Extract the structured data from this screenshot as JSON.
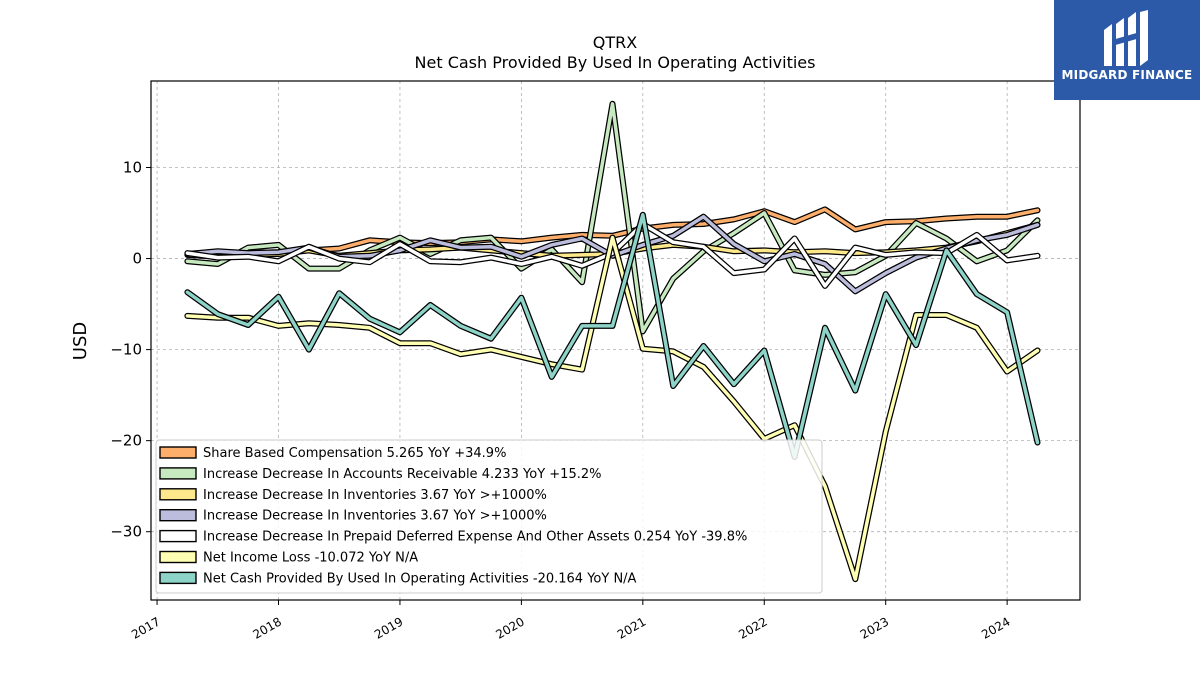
{
  "brand": {
    "name": "MIDGARD FINANCE",
    "bg_color": "#2c5aa8"
  },
  "chart_data": {
    "type": "line",
    "title": "QTRX",
    "subtitle": "Net Cash Provided By Used In Operating Activities",
    "ylabel": "USD",
    "xlabel": "",
    "xlim": [
      2016.95,
      2024.6
    ],
    "ylim": [
      -37.5,
      19.5
    ],
    "yticks": [
      10,
      0,
      -10,
      -20,
      -30
    ],
    "xticks": [
      "2017",
      "2018",
      "2019",
      "2020",
      "2021",
      "2022",
      "2023",
      "2024"
    ],
    "grid": true,
    "legend_placement": "lower-left",
    "x": [
      2017.25,
      2017.5,
      2017.75,
      2018.0,
      2018.25,
      2018.5,
      2018.75,
      2019.0,
      2019.25,
      2019.5,
      2019.75,
      2020.0,
      2020.25,
      2020.5,
      2020.75,
      2021.0,
      2021.25,
      2021.5,
      2021.75,
      2022.0,
      2022.25,
      2022.5,
      2022.75,
      2023.0,
      2023.25,
      2023.5,
      2023.75,
      2024.0,
      2024.25
    ],
    "series": [
      {
        "name": "Share Based Compensation  5.265 YoY +34.9%",
        "color": "#fdae6b",
        "values": [
          0.5,
          0.5,
          0.6,
          0.7,
          0.9,
          1.1,
          2.0,
          1.8,
          1.7,
          1.8,
          2.1,
          1.9,
          2.3,
          2.6,
          2.5,
          3.3,
          3.7,
          3.8,
          4.3,
          5.2,
          4.0,
          5.4,
          3.2,
          4.0,
          4.1,
          4.4,
          4.6,
          4.6,
          5.3
        ]
      },
      {
        "name": "Increase Decrease In Accounts Receivable  4.233 YoY +15.2%",
        "color": "#c7e9c0",
        "values": [
          -0.3,
          -0.6,
          1.2,
          1.5,
          -1.1,
          -1.1,
          0.9,
          2.3,
          0.5,
          2.0,
          2.3,
          -1.1,
          1.0,
          -2.6,
          17.0,
          -8.0,
          -2.2,
          0.8,
          2.8,
          5.0,
          -1.3,
          -1.8,
          -1.5,
          0.3,
          3.9,
          2.2,
          -0.3,
          0.9,
          4.2
        ]
      },
      {
        "name": "Increase Decrease In Inventories  3.67 YoY >+1000%",
        "color": "#fde98b",
        "values": [
          0.4,
          0.2,
          0.4,
          0.5,
          0.9,
          0.3,
          0.6,
          0.9,
          1.0,
          1.2,
          0.9,
          0.6,
          0.3,
          0.4,
          0.5,
          1.1,
          1.5,
          1.3,
          0.8,
          0.9,
          0.7,
          0.8,
          0.6,
          0.7,
          0.9,
          1.2,
          1.9,
          2.8,
          3.7
        ]
      },
      {
        "name": "Increase Decrease In Inventories  3.67 YoY >+1000%",
        "color": "#bcbddc",
        "values": [
          0.5,
          0.8,
          0.6,
          0.7,
          1.2,
          0.2,
          0.3,
          0.9,
          2.0,
          1.2,
          1.3,
          0.2,
          1.5,
          2.2,
          0.3,
          1.5,
          2.5,
          4.6,
          1.6,
          -0.3,
          0.5,
          -0.6,
          -3.6,
          -1.6,
          0.1,
          1.1,
          2.0,
          2.6,
          3.7
        ]
      },
      {
        "name": "Increase Decrease In Prepaid Deferred Expense And Other Assets  0.254 YoY -39.8%",
        "color": "#ffffff",
        "values": [
          0.6,
          0.1,
          0.2,
          -0.3,
          1.3,
          0.0,
          -0.4,
          1.6,
          -0.3,
          -0.4,
          0.1,
          -0.6,
          0.2,
          -0.8,
          0.6,
          3.8,
          1.8,
          1.3,
          -1.6,
          -1.2,
          2.2,
          -3.0,
          1.2,
          0.4,
          0.7,
          0.6,
          2.6,
          -0.2,
          0.3
        ]
      },
      {
        "name": "Net Income Loss  -10.072 YoY N/A",
        "color": "#ffffb3",
        "values": [
          -6.3,
          -6.5,
          -6.5,
          -7.4,
          -7.1,
          -7.3,
          -7.6,
          -9.3,
          -9.3,
          -10.5,
          -10.0,
          -10.8,
          -11.6,
          -12.2,
          2.3,
          -9.9,
          -10.2,
          -11.9,
          -15.7,
          -19.8,
          -18.3,
          -25.0,
          -35.2,
          -19.0,
          -6.2,
          -6.2,
          -7.6,
          -12.4,
          -10.1
        ]
      },
      {
        "name": "Net Cash Provided By Used In Operating Activities  -20.164 YoY N/A",
        "color": "#8dd3c7",
        "values": [
          -3.7,
          -6.1,
          -7.3,
          -4.2,
          -10.0,
          -3.8,
          -6.6,
          -8.1,
          -5.1,
          -7.4,
          -8.8,
          -4.3,
          -13.0,
          -7.4,
          -7.4,
          4.8,
          -14.0,
          -9.6,
          -13.8,
          -10.1,
          -21.8,
          -7.6,
          -14.5,
          -3.9,
          -9.5,
          0.9,
          -3.9,
          -5.9,
          -20.2
        ]
      }
    ]
  }
}
